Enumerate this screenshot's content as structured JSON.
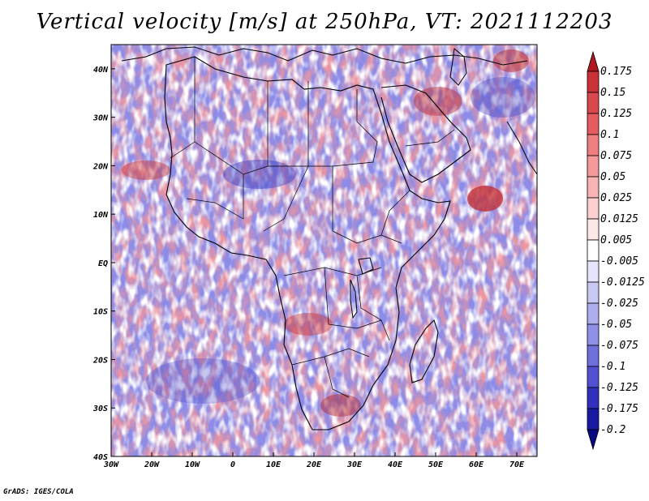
{
  "title": "Vertical velocity [m/s] at 250hPa, VT: 2021112203",
  "credit": "GrADS: IGES/COLA",
  "map": {
    "variable": "Vertical velocity",
    "units": "m/s",
    "level": "250hPa",
    "valid_time": "2021112203",
    "lon_range": [
      -30,
      75
    ],
    "lat_range": [
      -40,
      45
    ],
    "x_ticks": [
      "30W",
      "20W",
      "10W",
      "0",
      "10E",
      "20E",
      "30E",
      "40E",
      "50E",
      "60E",
      "70E"
    ],
    "x_tick_values": [
      -30,
      -20,
      -10,
      0,
      10,
      20,
      30,
      40,
      50,
      60,
      70
    ],
    "y_ticks": [
      "40N",
      "30N",
      "20N",
      "10N",
      "EQ",
      "10S",
      "20S",
      "30S",
      "40S"
    ],
    "y_tick_values": [
      40,
      30,
      20,
      10,
      0,
      -10,
      -20,
      -30,
      -40
    ]
  },
  "colorbar": {
    "labels": [
      "0.175",
      "0.15",
      "0.125",
      "0.1",
      "0.075",
      "0.05",
      "0.025",
      "0.0125",
      "0.005",
      "-0.005",
      "-0.0125",
      "-0.025",
      "-0.05",
      "-0.075",
      "-0.1",
      "-0.125",
      "-0.175",
      "-0.2"
    ],
    "colors": [
      "#b01820",
      "#c83238",
      "#d8484c",
      "#e45c60",
      "#ee7e80",
      "#f49a9a",
      "#f8b4b4",
      "#fcd0d0",
      "#fde8e8",
      "#ffffff",
      "#e4e4fa",
      "#c8c8f2",
      "#aeaeee",
      "#9090e6",
      "#7070dc",
      "#5050d0",
      "#3030bc",
      "#1818a0",
      "#0a0a80"
    ]
  },
  "colors": {
    "background": "#ffffff",
    "boundary": "#000000"
  }
}
